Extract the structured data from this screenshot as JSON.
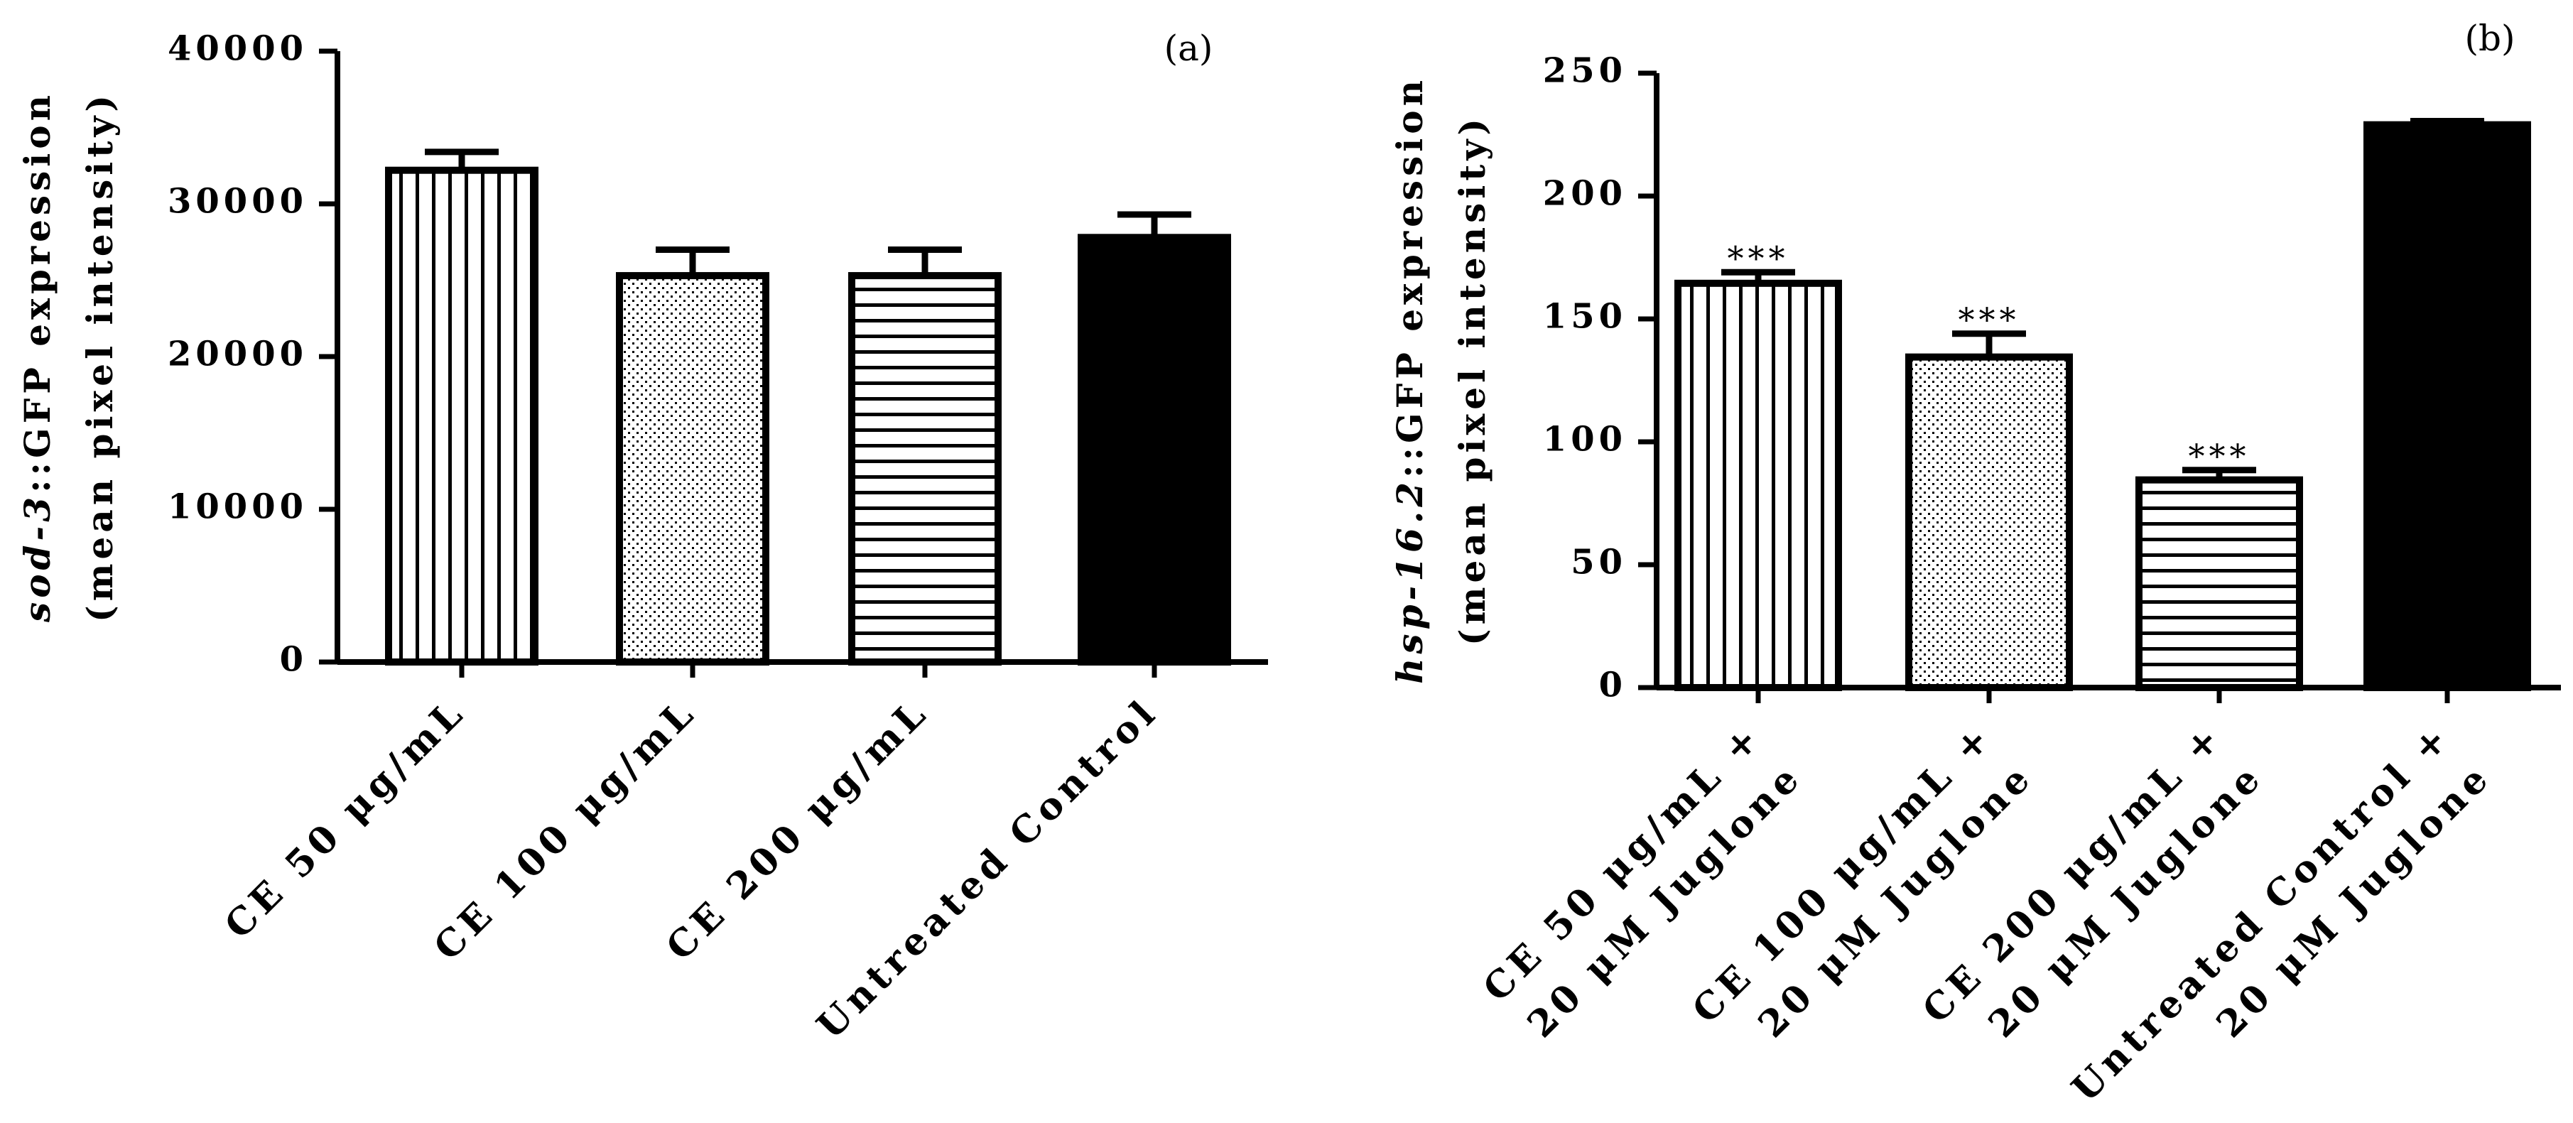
{
  "chart_data": [
    {
      "type": "bar",
      "panel_label": "(a)",
      "ylabel_gene": "sod-3",
      "ylabel_rest": "::GFP expression",
      "ylabel_line2": "(mean pixel intensity)",
      "ylim": [
        0,
        40000
      ],
      "yticks": [
        "0",
        "10000",
        "20000",
        "30000",
        "40000"
      ],
      "categories": [
        {
          "lines": [
            "CE 50 μg/mL"
          ]
        },
        {
          "lines": [
            "CE 100 μg/mL"
          ]
        },
        {
          "lines": [
            "CE 200 μg/mL"
          ]
        },
        {
          "lines": [
            "Untreated Control"
          ]
        }
      ],
      "values": [
        32200,
        25300,
        25300,
        27800
      ],
      "errors": [
        1200,
        1700,
        1700,
        1500
      ],
      "patterns": [
        "vertical",
        "dots",
        "horizontal",
        "solid"
      ],
      "significance": [
        "",
        "",
        "",
        ""
      ]
    },
    {
      "type": "bar",
      "panel_label": "(b)",
      "ylabel_gene": "hsp-16.2",
      "ylabel_rest": "::GFP expression",
      "ylabel_line2": "(mean pixel intensity)",
      "ylim": [
        0,
        250
      ],
      "yticks": [
        "0",
        "50",
        "100",
        "150",
        "200",
        "250"
      ],
      "categories": [
        {
          "lines": [
            "CE 50 μg/mL +",
            "20 μM Juglone"
          ]
        },
        {
          "lines": [
            "CE 100 μg/mL +",
            "20 μM Juglone"
          ]
        },
        {
          "lines": [
            "CE 200 μg/mL +",
            "20 μM Juglone"
          ]
        },
        {
          "lines": [
            "Untreated Control +",
            "20 μM Juglone"
          ]
        }
      ],
      "values": [
        164.5,
        134.5,
        84.5,
        229
      ],
      "errors": [
        4.5,
        9.5,
        4,
        1.5
      ],
      "patterns": [
        "vertical",
        "dots",
        "horizontal",
        "solid"
      ],
      "significance": [
        "***",
        "***",
        "***",
        ""
      ]
    }
  ]
}
